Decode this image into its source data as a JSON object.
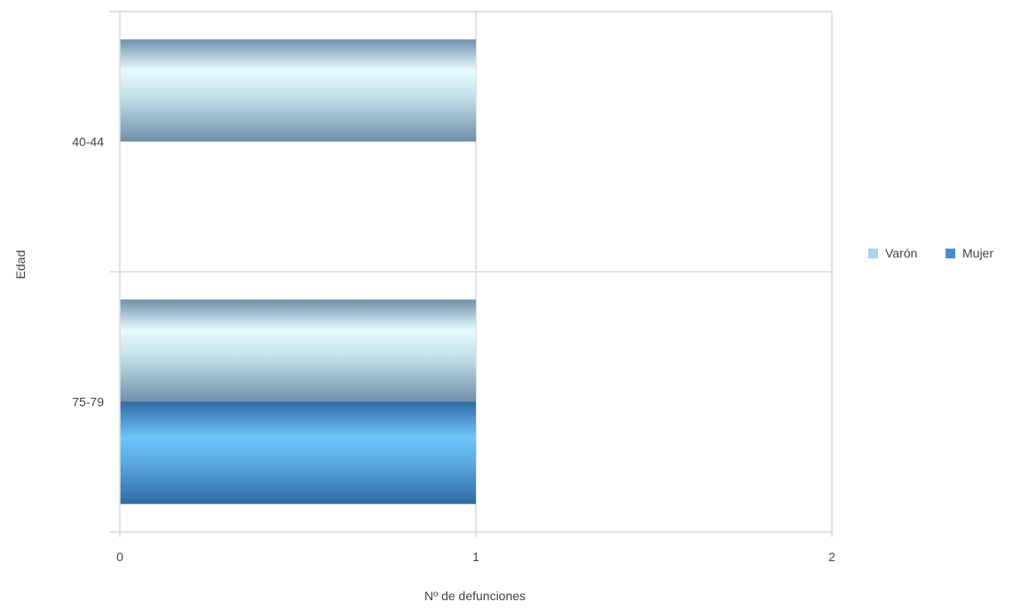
{
  "chart_data": {
    "type": "bar",
    "orientation": "horizontal",
    "categories": [
      "40-44",
      "75-79"
    ],
    "series": [
      {
        "name": "Varón",
        "values": [
          1,
          1
        ],
        "color": "#a9d4f0"
      },
      {
        "name": "Mujer",
        "values": [
          null,
          1
        ],
        "color": "#4a8ccc"
      }
    ],
    "xlabel": "Nº de defunciones",
    "ylabel": "Edad",
    "xlim": [
      0,
      2
    ],
    "x_ticks": [
      "0",
      "1",
      "2"
    ],
    "grid": true,
    "legend_position": "right",
    "colors": {
      "grid": "#d9d9d9",
      "text": "#444444"
    }
  }
}
